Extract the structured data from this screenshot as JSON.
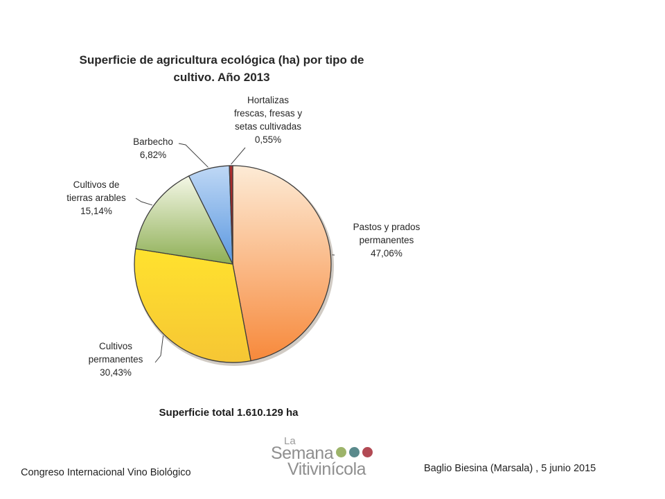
{
  "chart_data": {
    "type": "pie",
    "title": "Superficie de agricultura ecológica (ha) por tipo de cultivo. Año 2013",
    "title_lines": [
      "Superficie de agricultura ecológica (ha) por tipo de",
      "cultivo. Año 2013"
    ],
    "slices": [
      {
        "label_lines": [
          "Pastos y prados",
          "permanentes"
        ],
        "value": 47.06,
        "value_text": "47,06%",
        "color": "#F7893B",
        "color_light": "#FDEBD6"
      },
      {
        "label_lines": [
          "Cultivos",
          "permanentes"
        ],
        "value": 30.43,
        "value_text": "30,43%",
        "color": "#F6C634",
        "color_light": "#FFE22E"
      },
      {
        "label_lines": [
          "Cultivos de",
          "tierras arables"
        ],
        "value": 15.14,
        "value_text": "15,14%",
        "color": "#8EAF55",
        "color_light": "#F4F7E6"
      },
      {
        "label_lines": [
          "Barbecho"
        ],
        "value": 6.82,
        "value_text": "6,82%",
        "color": "#5B98E0",
        "color_light": "#BFD8F5"
      },
      {
        "label_lines": [
          "Hortalizas",
          "frescas, fresas y",
          "setas cultivadas"
        ],
        "value": 0.55,
        "value_text": "0,55%",
        "color": "#8B1A1A",
        "color_light": "#B03030"
      }
    ],
    "legend": "none"
  },
  "total_text": "Superficie total 1.610.129 ha",
  "footer": {
    "left": "Congreso Internacional Vino Biológico",
    "right": "Baglio Biesina (Marsala) ,  5 junio 2015"
  },
  "logo": {
    "line1": "La",
    "line2": "Semana",
    "line3": "Vitivinícola",
    "icons": [
      "olive-emblem-icon",
      "grape-emblem-icon",
      "leaf-emblem-icon"
    ],
    "icon_colors": [
      "#9DB46A",
      "#5A8A8C",
      "#B24A54"
    ]
  }
}
